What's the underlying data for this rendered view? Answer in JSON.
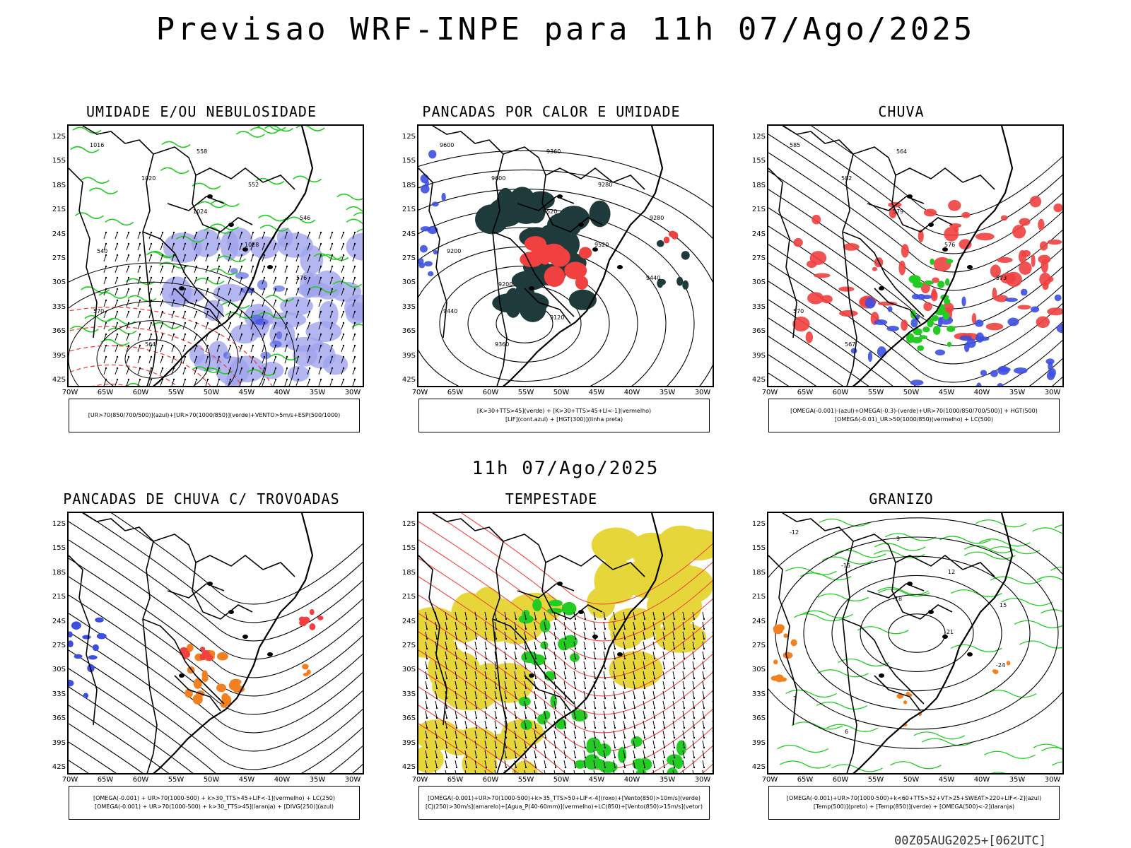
{
  "main_title": "Previsao WRF-INPE  para 11h 07/Ago/2025",
  "mid_title": "11h 07/Ago/2025",
  "footer": "00Z05AUG2025+[062UTC]",
  "lat_labels": [
    "12S",
    "15S",
    "18S",
    "21S",
    "24S",
    "27S",
    "30S",
    "33S",
    "36S",
    "39S",
    "42S"
  ],
  "lon_labels": [
    "70W",
    "65W",
    "60W",
    "55W",
    "50W",
    "45W",
    "40W",
    "35W",
    "30W"
  ],
  "panels": [
    {
      "title": "UMIDADE E/OU NEBULOSIDADE",
      "legend": [
        "[UR>70(850/700/500)](azul)+[UR>70(1000/850)](verde)+VENTO>5m/s+ESP(500/1000)"
      ],
      "contour_labels": [
        "1016",
        "1020",
        "1024",
        "1028",
        "576",
        "570",
        "564",
        "558",
        "552",
        "546",
        "540"
      ]
    },
    {
      "title": "PANCADAS POR CALOR E UMIDADE",
      "legend": [
        "[K>30+TTS>45](verde) + [K>30+TTS>45+LI<-1](vermelho)",
        "[LIF](cont.azul) + [HGT(300)](linha preta)"
      ],
      "contour_labels": [
        "9600",
        "9600",
        "9520",
        "9520",
        "9440",
        "9440",
        "9360",
        "9360",
        "9280",
        "9280",
        "9200",
        "9200",
        "9120"
      ]
    },
    {
      "title": "CHUVA",
      "legend": [
        "[OMEGA(-0.001)-(azul)+OMEGA(-0.3)-(verde)+UR>70(1000/850/700/500)] + HGT(500)",
        "[OMEGA(-0.01)_UR>50(1000/850)(vermelho) + LC(500)"
      ],
      "contour_labels": [
        "585",
        "582",
        "579",
        "576",
        "573",
        "570",
        "567",
        "564"
      ]
    },
    {
      "title": "PANCADAS DE CHUVA C/ TROVOADAS",
      "legend": [
        "[OMEGA(-0.001) + UR>70(1000-500) + k>30_TTS>45+LIF<-1](vermelho) + LC(250)",
        "[OMEGA(-0.001) + UR>70(1000-500) + k>30_TTS>45](laranja) + [DIVG(250)](azul)"
      ],
      "contour_labels": []
    },
    {
      "title": "TEMPESTADE",
      "legend": [
        "[OMEGA(-0.001)+UR>70(1000-500)+k>35_TTS>50+LIF<-4](roxo)+[Vento(850)>10m/s](verde)",
        "[CJ(250)>30m/s](amarelo)+[Agua_P(40-60mm)](vermelho)+LC(850)+[Vento(850)>15m/s](vetor)"
      ],
      "contour_labels": []
    },
    {
      "title": "GRANIZO",
      "legend": [
        "[OMEGA(-0.001)+UR>70(1000-500)+k<60+TTS>52+VT>25+SWEAT>220+LIF<-2](azul)",
        "[Temp(500)](preto) + [Temp(850)](verde) + [OMEGA(500)<-2](laranja)"
      ],
      "contour_labels": [
        "-12",
        "-15",
        "-18",
        "-21",
        "-24",
        "3",
        "6",
        "9",
        "12",
        "15"
      ]
    }
  ],
  "colors": {
    "blue": "#3d4fe0",
    "green": "#22cc22",
    "red": "#f04040",
    "orange": "#f08020",
    "dark": "#1e3a3a",
    "yellow": "#e6d63a",
    "lavender": "#a0a4ee"
  }
}
